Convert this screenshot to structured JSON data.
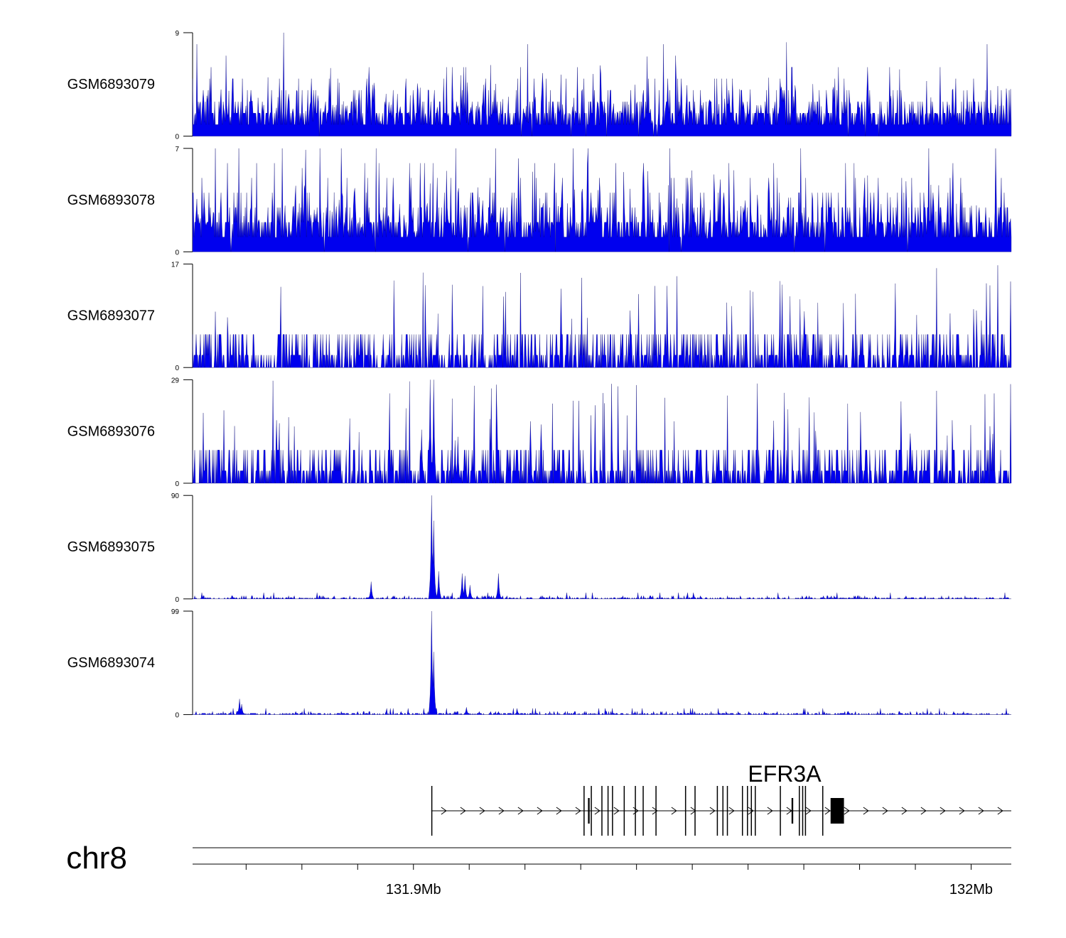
{
  "chart_data": {
    "type": "area",
    "title": "",
    "chromosome": "chr8",
    "xunit": "Mb",
    "xlim": [
      131.8604,
      132.0072
    ],
    "tracks": [
      {
        "name": "GSM6893079",
        "ymin": "0",
        "ymax": "9",
        "ylim": [
          0,
          9
        ],
        "color": "#0000ee",
        "pattern": "noise",
        "gap_rate": 0.01,
        "seed": 79
      },
      {
        "name": "GSM6893078",
        "ymin": "0",
        "ymax": "7",
        "ylim": [
          0,
          7
        ],
        "color": "#0000ee",
        "pattern": "noise",
        "gap_rate": 0.01,
        "seed": 78
      },
      {
        "name": "GSM6893077",
        "ymin": "0",
        "ymax": "17",
        "ylim": [
          0,
          17
        ],
        "color": "#0000ee",
        "pattern": "sparse",
        "gap_rate": 0.06,
        "seed": 77
      },
      {
        "name": "GSM6893076",
        "ymin": "0",
        "ymax": "29",
        "ylim": [
          0,
          29
        ],
        "color": "#0000ee",
        "pattern": "sparse",
        "gap_rate": 0.05,
        "seed": 76,
        "peaks": [
          {
            "x": 131.903,
            "y": 29
          },
          {
            "x": 131.9037,
            "y": 29
          },
          {
            "x": 131.9015,
            "y": 15
          },
          {
            "x": 131.908,
            "y": 13
          },
          {
            "x": 131.9075,
            "y": 12
          },
          {
            "x": 131.921,
            "y": 12
          }
        ]
      },
      {
        "name": "GSM6893075",
        "ymin": "0",
        "ymax": "90",
        "ylim": [
          0,
          90
        ],
        "color": "#0000ee",
        "pattern": "low",
        "gap_rate": 0.05,
        "seed": 75,
        "peaks": [
          {
            "x": 131.9032,
            "y": 90
          },
          {
            "x": 131.9036,
            "y": 68
          },
          {
            "x": 131.9045,
            "y": 24
          },
          {
            "x": 131.9087,
            "y": 22
          },
          {
            "x": 131.9152,
            "y": 22
          },
          {
            "x": 131.9102,
            "y": 12
          },
          {
            "x": 131.8924,
            "y": 15
          },
          {
            "x": 131.9092,
            "y": 20
          }
        ]
      },
      {
        "name": "GSM6893074",
        "ymin": "0",
        "ymax": "99",
        "ylim": [
          0,
          99
        ],
        "color": "#0000ee",
        "pattern": "low",
        "gap_rate": 0.0,
        "seed": 74,
        "peaks": [
          {
            "x": 131.9032,
            "y": 99
          },
          {
            "x": 131.9036,
            "y": 60
          },
          {
            "x": 131.8688,
            "y": 15
          },
          {
            "x": 131.8692,
            "y": 10
          },
          {
            "x": 131.9095,
            "y": 7
          }
        ]
      }
    ],
    "gene": {
      "name": "EFR3A",
      "strand": "+",
      "start": 131.9032,
      "end": 132.0072,
      "exons": [
        {
          "start": 131.9032,
          "end": 131.90335,
          "thick": false
        },
        {
          "start": 131.9305,
          "end": 131.93065,
          "thick": false
        },
        {
          "start": 131.9313,
          "end": 131.9316,
          "thick": true
        },
        {
          "start": 131.9318,
          "end": 131.93195,
          "thick": false
        },
        {
          "start": 131.9337,
          "end": 131.93385,
          "thick": false
        },
        {
          "start": 131.9348,
          "end": 131.93495,
          "thick": false
        },
        {
          "start": 131.9356,
          "end": 131.93575,
          "thick": false
        },
        {
          "start": 131.9377,
          "end": 131.93785,
          "thick": false
        },
        {
          "start": 131.9397,
          "end": 131.93985,
          "thick": false
        },
        {
          "start": 131.9411,
          "end": 131.94125,
          "thick": false
        },
        {
          "start": 131.9434,
          "end": 131.94355,
          "thick": false
        },
        {
          "start": 131.9487,
          "end": 131.94885,
          "thick": false
        },
        {
          "start": 131.9504,
          "end": 131.95055,
          "thick": false
        },
        {
          "start": 131.9544,
          "end": 131.95455,
          "thick": false
        },
        {
          "start": 131.9554,
          "end": 131.95555,
          "thick": false
        },
        {
          "start": 131.9562,
          "end": 131.95635,
          "thick": false
        },
        {
          "start": 131.9589,
          "end": 131.95905,
          "thick": false
        },
        {
          "start": 131.9598,
          "end": 131.95995,
          "thick": false
        },
        {
          "start": 131.9605,
          "end": 131.96065,
          "thick": false
        },
        {
          "start": 131.9612,
          "end": 131.96135,
          "thick": false
        },
        {
          "start": 131.9657,
          "end": 131.96585,
          "thick": false
        },
        {
          "start": 131.9678,
          "end": 131.9681,
          "thick": true
        },
        {
          "start": 131.9691,
          "end": 131.96925,
          "thick": false
        },
        {
          "start": 131.9697,
          "end": 131.96985,
          "thick": false
        },
        {
          "start": 131.9702,
          "end": 131.97035,
          "thick": false
        },
        {
          "start": 131.9733,
          "end": 131.97345,
          "thick": false
        },
        {
          "start": 131.9748,
          "end": 131.9772,
          "thick": true
        }
      ]
    },
    "axis": {
      "ticks": [
        131.85,
        131.86,
        131.87,
        131.88,
        131.89,
        131.9,
        131.91,
        131.92,
        131.93,
        131.94,
        131.95,
        131.96,
        131.97,
        131.98,
        131.99,
        132.0
      ],
      "labels": [
        {
          "value": 131.9,
          "text": "131.9Mb"
        },
        {
          "value": 132.0,
          "text": "132Mb"
        }
      ]
    }
  }
}
